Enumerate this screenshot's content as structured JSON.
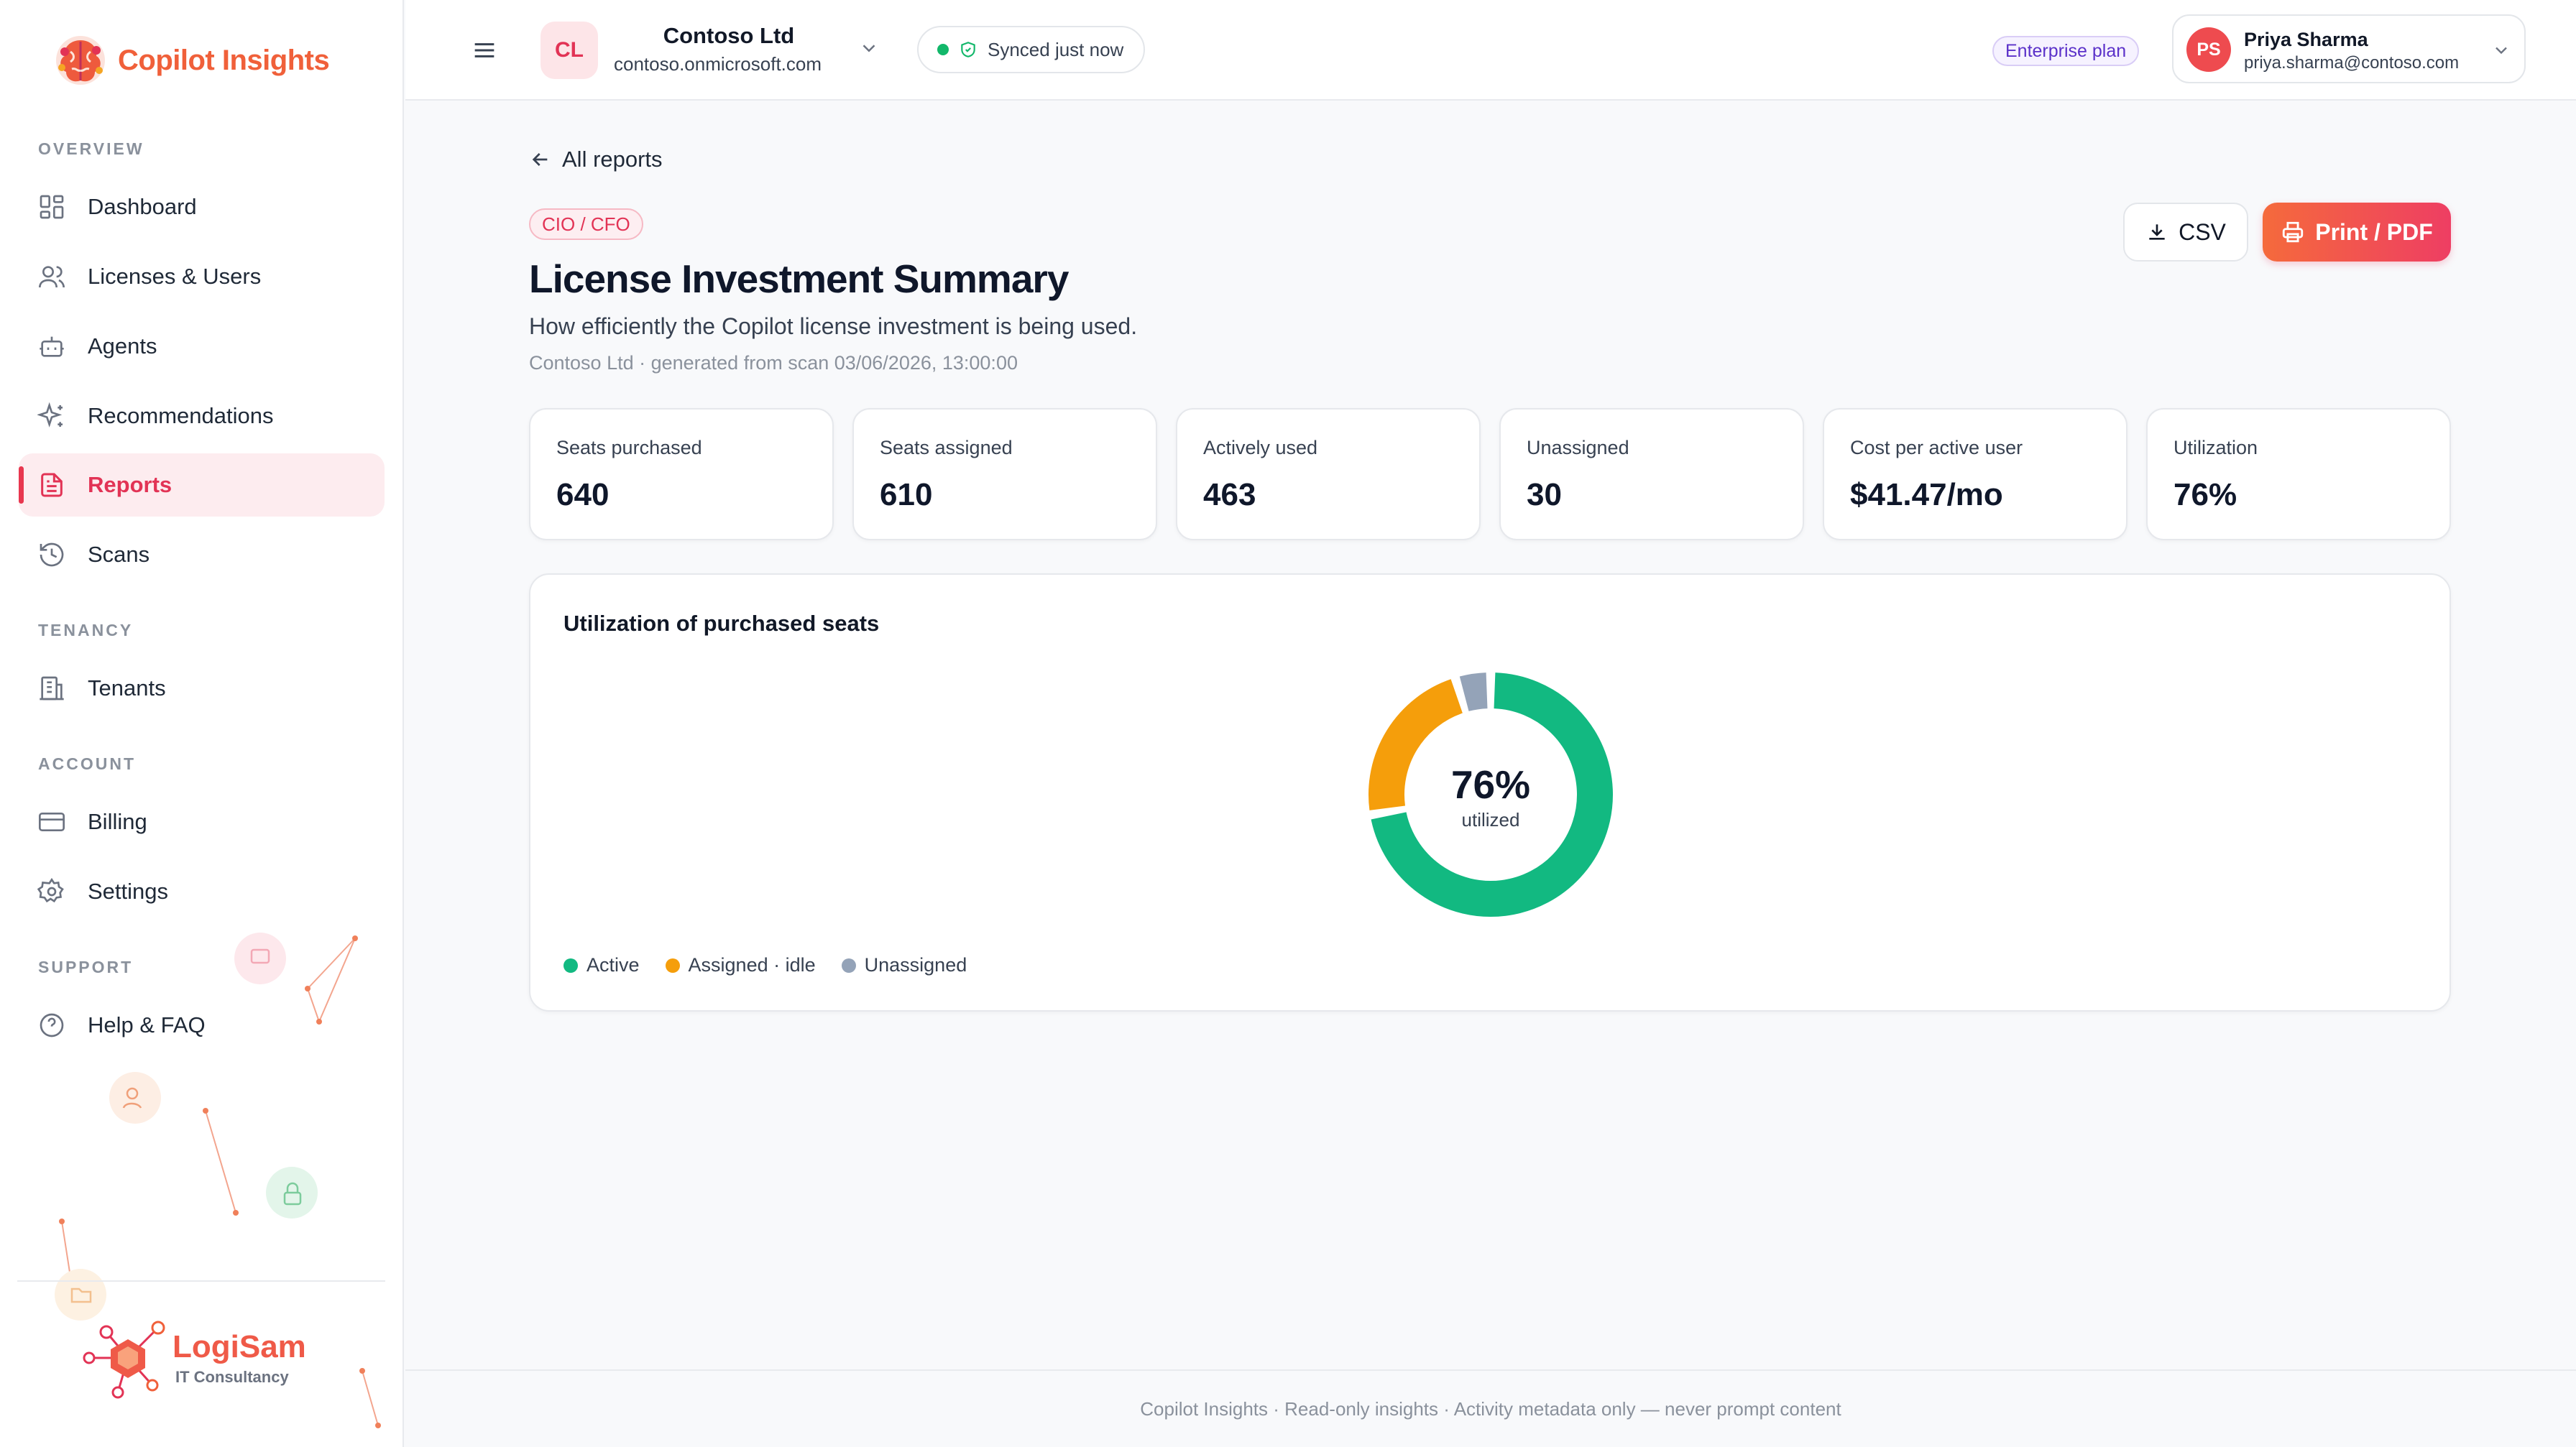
{
  "app": {
    "brand": "Copilot Insights"
  },
  "sidebar": {
    "sections": {
      "overview": "OVERVIEW",
      "tenancy": "TENANCY",
      "account": "ACCOUNT",
      "support": "SUPPORT"
    },
    "items": [
      {
        "label": "Dashboard",
        "icon": "dashboard-icon"
      },
      {
        "label": "Licenses & Users",
        "icon": "users-icon"
      },
      {
        "label": "Agents",
        "icon": "bot-icon"
      },
      {
        "label": "Recommendations",
        "icon": "sparkles-icon"
      },
      {
        "label": "Reports",
        "icon": "file-text-icon",
        "active": true
      },
      {
        "label": "Scans",
        "icon": "history-icon"
      },
      {
        "label": "Tenants",
        "icon": "building-icon"
      },
      {
        "label": "Billing",
        "icon": "credit-card-icon"
      },
      {
        "label": "Settings",
        "icon": "gear-icon"
      },
      {
        "label": "Help & FAQ",
        "icon": "help-circle-icon"
      }
    ],
    "partner_logo": {
      "name": "LogiSam",
      "tagline": "IT Consultancy"
    }
  },
  "topbar": {
    "tenant": {
      "initials": "CL",
      "name": "Contoso Ltd",
      "domain": "contoso.onmicrosoft.com"
    },
    "sync_status": "Synced just now",
    "plan": "Enterprise plan",
    "user": {
      "initials": "PS",
      "name": "Priya Sharma",
      "email": "priya.sharma@contoso.com"
    }
  },
  "report": {
    "back_label": "All reports",
    "audience_tag": "CIO / CFO",
    "title": "License Investment Summary",
    "subtitle": "How efficiently the Copilot license investment is being used.",
    "meta": "Contoso Ltd · generated from scan 03/06/2026, 13:00:00",
    "actions": {
      "csv": "CSV",
      "pdf": "Print / PDF"
    },
    "stats": [
      {
        "label": "Seats purchased",
        "value": "640"
      },
      {
        "label": "Seats assigned",
        "value": "610"
      },
      {
        "label": "Actively used",
        "value": "463"
      },
      {
        "label": "Unassigned",
        "value": "30"
      },
      {
        "label": "Cost per active user",
        "value": "$41.47/mo"
      },
      {
        "label": "Utilization",
        "value": "76%"
      }
    ],
    "chart_title": "Utilization of purchased seats",
    "donut_center": {
      "value": "76%",
      "label": "utilized"
    }
  },
  "chart_data": {
    "type": "pie",
    "title": "Utilization of purchased seats",
    "categories": [
      "Active",
      "Assigned · idle",
      "Unassigned"
    ],
    "values": [
      463,
      147,
      30
    ],
    "colors": [
      "#12b981",
      "#f59e0b",
      "#94a3b8"
    ],
    "legend": "bottom-left"
  },
  "footer": "Copilot Insights · Read-only insights · Activity metadata only — never prompt content"
}
